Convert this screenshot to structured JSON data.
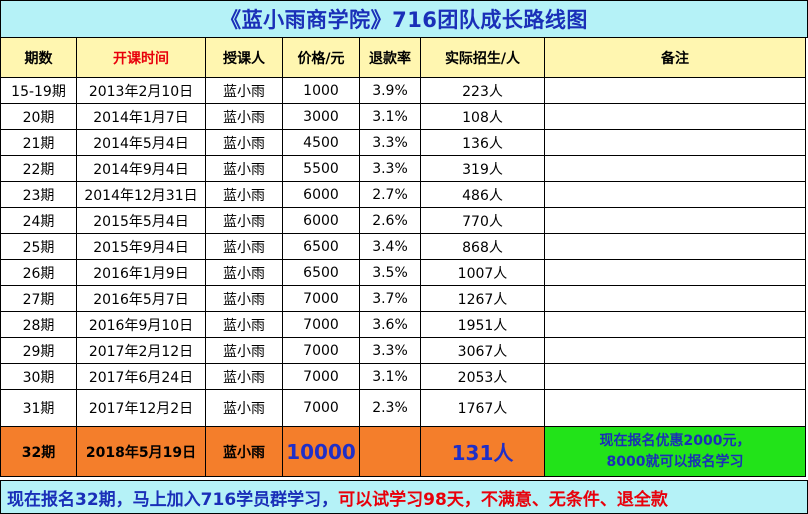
{
  "title": "《蓝小雨商学院》716团队成长路线图",
  "headers": [
    "期数",
    "开课时间",
    "授课人",
    "价格/元",
    "退款率",
    "实际招生/人",
    "备注"
  ],
  "rows": [
    [
      "15-19期",
      "2013年2月10日",
      "蓝小雨",
      "1000",
      "3.9%",
      "223人",
      ""
    ],
    [
      "20期",
      "2014年1月7日",
      "蓝小雨",
      "3000",
      "3.1%",
      "108人",
      ""
    ],
    [
      "21期",
      "2014年5月4日",
      "蓝小雨",
      "4500",
      "3.3%",
      "136人",
      ""
    ],
    [
      "22期",
      "2014年9月4日",
      "蓝小雨",
      "5500",
      "3.3%",
      "319人",
      ""
    ],
    [
      "23期",
      "2014年12月31日",
      "蓝小雨",
      "6000",
      "2.7%",
      "486人",
      ""
    ],
    [
      "24期",
      "2015年5月4日",
      "蓝小雨",
      "6000",
      "2.6%",
      "770人",
      ""
    ],
    [
      "25期",
      "2015年9月4日",
      "蓝小雨",
      "6500",
      "3.4%",
      "868人",
      ""
    ],
    [
      "26期",
      "2016年1月9日",
      "蓝小雨",
      "6500",
      "3.5%",
      "1007人",
      ""
    ],
    [
      "27期",
      "2016年5月7日",
      "蓝小雨",
      "7000",
      "3.7%",
      "1267人",
      ""
    ],
    [
      "28期",
      "2016年9月10日",
      "蓝小雨",
      "7000",
      "3.6%",
      "1951人",
      ""
    ],
    [
      "29期",
      "2017年2月12日",
      "蓝小雨",
      "7000",
      "3.3%",
      "3067人",
      ""
    ],
    [
      "30期",
      "2017年6月24日",
      "蓝小雨",
      "7000",
      "3.1%",
      "2053人",
      ""
    ],
    [
      "31期",
      "2017年12月2日",
      "蓝小雨",
      "7000",
      "2.3%",
      "1767人",
      ""
    ]
  ],
  "highlight": {
    "period": "32期",
    "date": "2018年5月19日",
    "teacher": "蓝小雨",
    "price": "10000",
    "refund": "",
    "enrolled": "131人",
    "note_line1": "现在报名优惠2000元，",
    "note_line2": "8000就可以报名学习"
  },
  "footer": {
    "blue_text": "现在报名32期，马上加入716学员群学习，",
    "red_text": "可以试学习98天，不满意、无条件、退全款"
  },
  "colors": {
    "title_bg": "#b5f2f7",
    "title_text": "#1a2fb8",
    "header_bg": "#fff6b0",
    "accent_red": "#e8000b",
    "highlight_bg": "#f47e2b",
    "note_bg": "#22e319"
  }
}
